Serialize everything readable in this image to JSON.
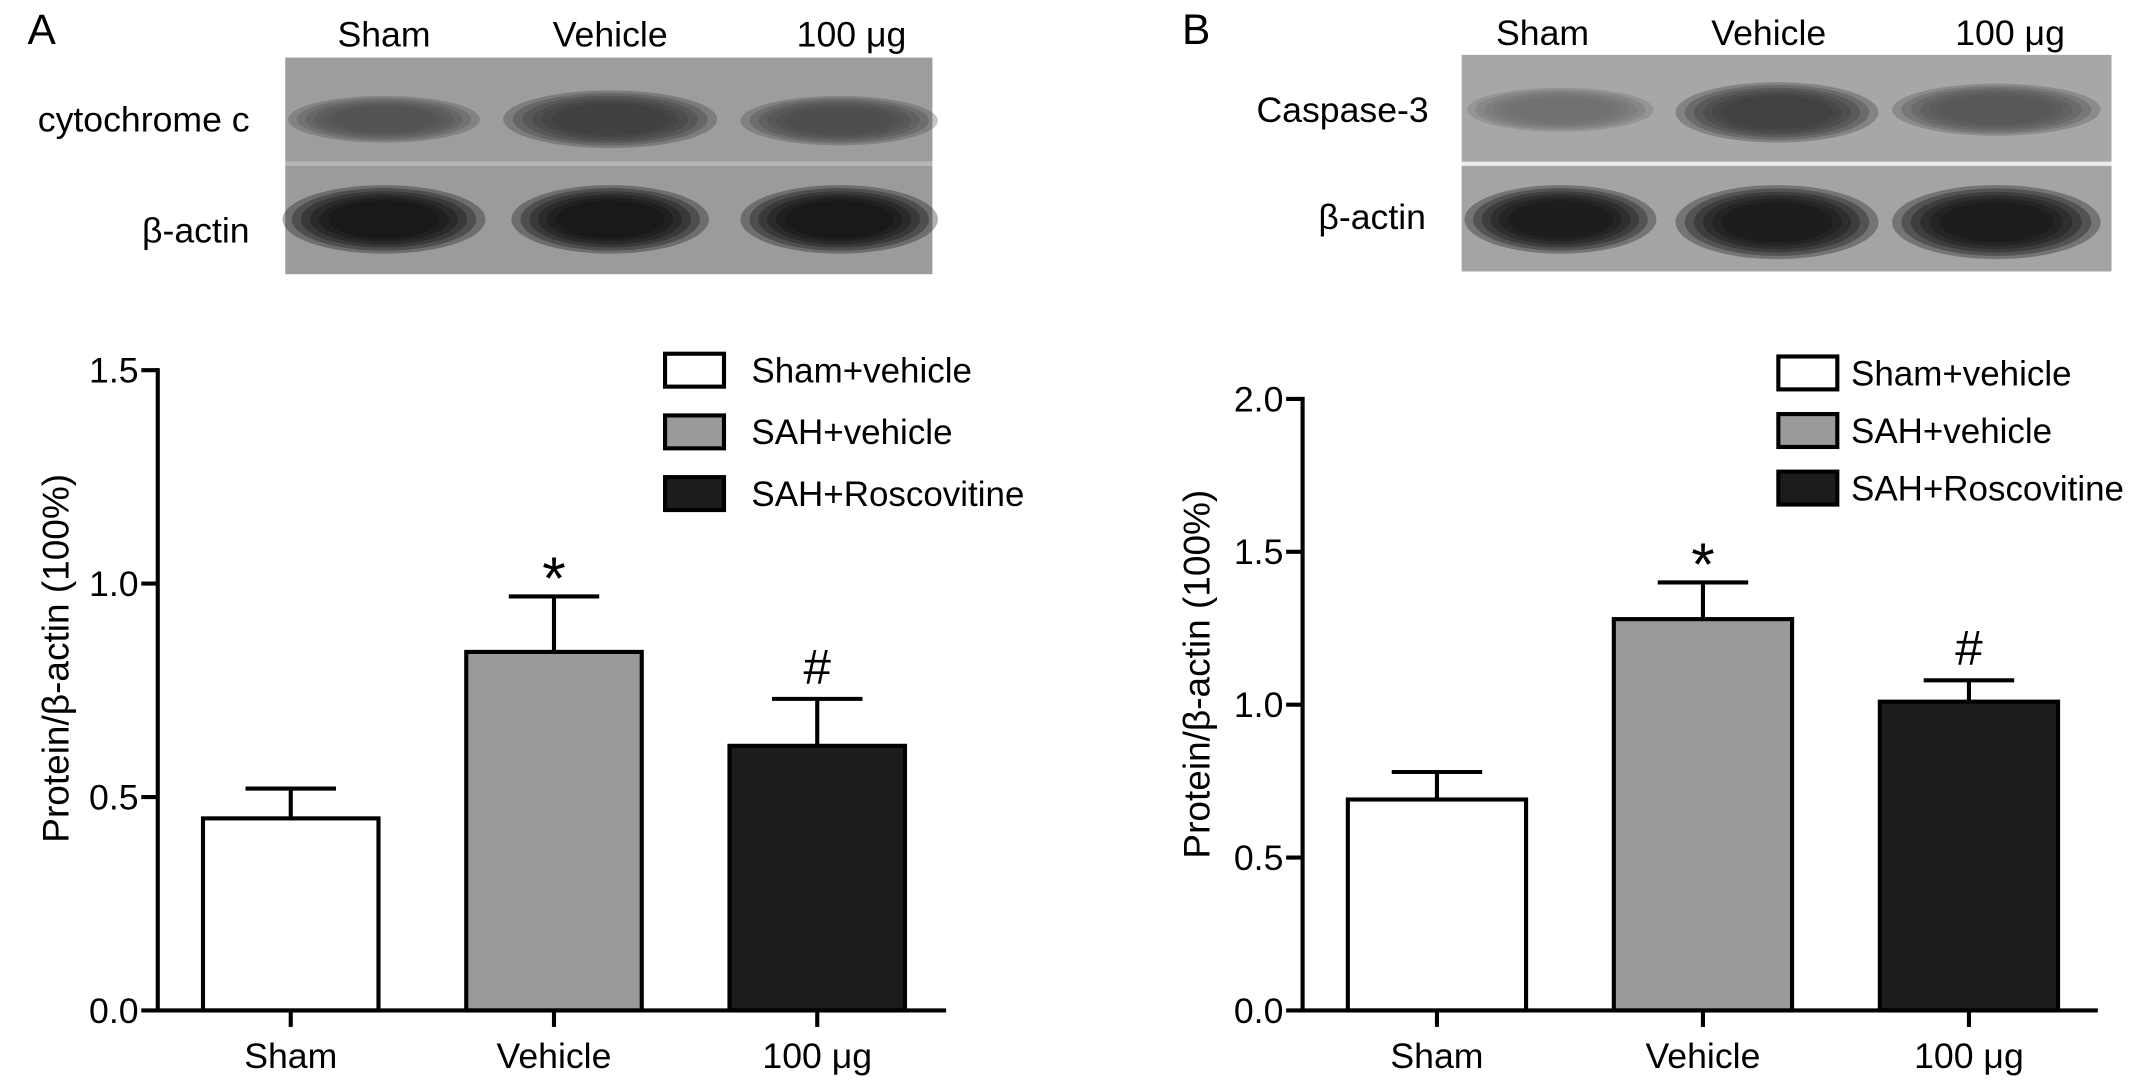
{
  "panels": [
    {
      "letter": "A",
      "blot": {
        "lanes": [
          "Sham",
          "Vehicle",
          "100 μg"
        ],
        "rows": [
          "cytochrome c",
          "β-actin"
        ]
      }
    },
    {
      "letter": "B",
      "blot": {
        "lanes": [
          "Sham",
          "Vehicle",
          "100 μg"
        ],
        "rows": [
          "Caspase-3",
          "β-actin"
        ]
      }
    }
  ],
  "chart_data": [
    {
      "type": "bar",
      "categories": [
        "Sham",
        "Vehicle",
        "100 μg"
      ],
      "values": [
        0.45,
        0.84,
        0.62
      ],
      "errors": [
        0.07,
        0.13,
        0.11
      ],
      "annotations": [
        "",
        "*",
        "#"
      ],
      "legend": [
        {
          "label": "Sham+vehicle",
          "color": "#ffffff"
        },
        {
          "label": "SAH+vehicle",
          "color": "#9a9a9a"
        },
        {
          "label": "SAH+Roscovitine",
          "color": "#1c1c1c"
        }
      ],
      "ylabel": "Protein/β-actin (100%)",
      "ylim": [
        0,
        1.5
      ],
      "yticks": [
        "0.0",
        "0.5",
        "1.0",
        "1.5"
      ],
      "legend_position": "top-right",
      "grid": false
    },
    {
      "type": "bar",
      "categories": [
        "Sham",
        "Vehicle",
        "100 μg"
      ],
      "values": [
        0.69,
        1.28,
        1.01
      ],
      "errors": [
        0.09,
        0.12,
        0.07
      ],
      "annotations": [
        "",
        "*",
        "#"
      ],
      "legend": [
        {
          "label": "Sham+vehicle",
          "color": "#ffffff"
        },
        {
          "label": "SAH+vehicle",
          "color": "#9a9a9a"
        },
        {
          "label": "SAH+Roscovitine",
          "color": "#1c1c1c"
        }
      ],
      "ylabel": "Protein/β-actin (100%)",
      "ylim": [
        0,
        2.0
      ],
      "yticks": [
        "0.0",
        "0.5",
        "1.0",
        "1.5",
        "2.0"
      ],
      "legend_position": "top-right",
      "grid": false
    }
  ]
}
